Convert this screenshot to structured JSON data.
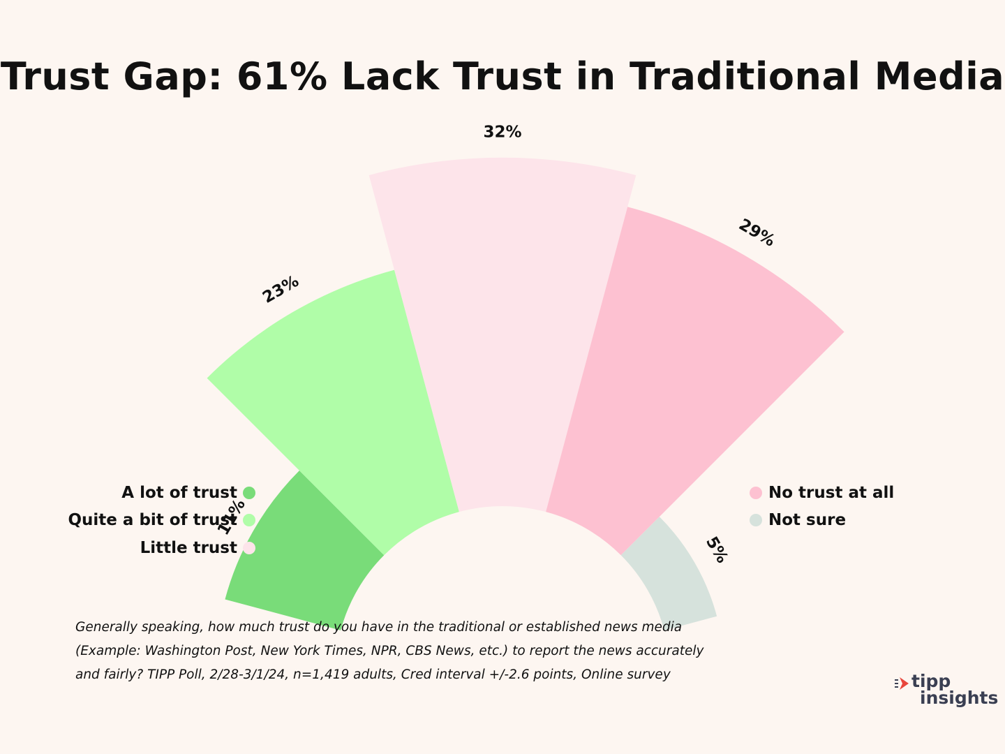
{
  "title": "Trust Gap: 61% Lack Trust in Traditional Media",
  "chart_data": {
    "type": "radial-bar",
    "title": "Trust Gap: 61% Lack Trust in Traditional Media",
    "categories": [
      "A lot of trust",
      "Quite a bit of trust",
      "Little trust",
      "No trust at all",
      "Not sure"
    ],
    "values": [
      11,
      23,
      32,
      29,
      5
    ],
    "value_labels": [
      "11%",
      "23%",
      "32%",
      "29%",
      "5%"
    ],
    "colors": [
      "#79dc79",
      "#b0fda8",
      "#fde4ea",
      "#fdc1d1",
      "#d6e2dc"
    ],
    "unit": "%"
  },
  "legend": {
    "left": [
      {
        "label": "A lot of trust",
        "color": "#79dc79"
      },
      {
        "label": "Quite a bit of trust",
        "color": "#b0fda8"
      },
      {
        "label": "Little trust",
        "color": "#fde4ea"
      }
    ],
    "right": [
      {
        "label": "No trust at all",
        "color": "#fdc1d1"
      },
      {
        "label": "Not sure",
        "color": "#d6e2dc"
      }
    ]
  },
  "footnote": {
    "line1": "Generally speaking, how much trust do you have in the traditional or  established news media",
    "line2": " (Example: Washington Post, New York Times, NPR,  CBS News, etc.) to report the news accurately",
    "line3": "and fairly? TIPP Poll, 2/28-3/1/24, n=1,419 adults, Cred interval +/-2.6 points, Online survey"
  },
  "logo": {
    "line1": "tipp",
    "line2": "insights",
    "mark_color": "#e8463c",
    "text_color": "#3a3f52"
  }
}
